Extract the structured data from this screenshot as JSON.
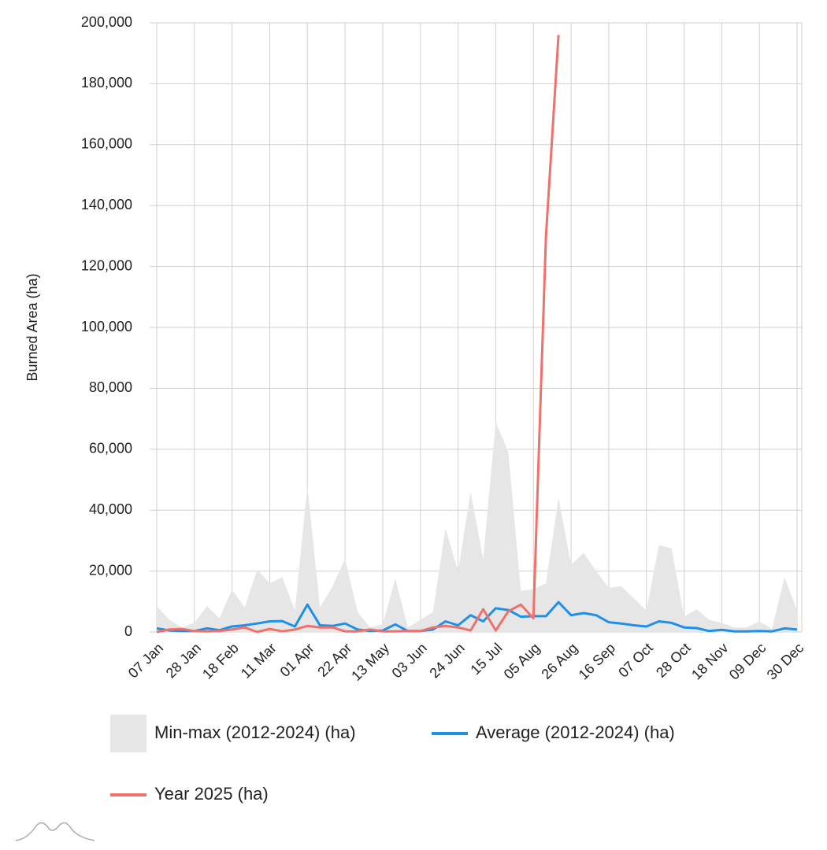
{
  "chart_data": {
    "type": "line",
    "y_label": "Burned Area (ha)",
    "categories": [
      "07 Jan",
      null,
      null,
      "28 Jan",
      null,
      null,
      "18 Feb",
      null,
      null,
      "11 Mar",
      null,
      null,
      "01 Apr",
      null,
      null,
      "22 Apr",
      null,
      null,
      "13 May",
      null,
      null,
      "03 Jun",
      null,
      null,
      "24 Jun",
      null,
      null,
      "15 Jul",
      null,
      null,
      "05 Aug",
      null,
      null,
      "26 Aug",
      null,
      null,
      "16 Sep",
      null,
      null,
      "07 Oct",
      null,
      null,
      "28 Oct",
      null,
      null,
      "18 Nov",
      null,
      null,
      "09 Dec",
      null,
      null,
      "30 Dec"
    ],
    "ylim": [
      0,
      200000
    ],
    "yticks": [
      0,
      {
        "value": 20000,
        "label": "20,000"
      },
      {
        "value": 40000,
        "label": "40,000"
      },
      {
        "value": 60000,
        "label": "60,000"
      },
      {
        "value": 80000,
        "label": "80,000"
      },
      {
        "value": 100000,
        "label": "100,000"
      },
      {
        "value": 120000,
        "label": "120,000"
      },
      {
        "value": 140000,
        "label": "140,000"
      },
      {
        "value": 160000,
        "label": "160,000"
      },
      {
        "value": 180000,
        "label": "180,000"
      },
      {
        "value": 200000,
        "label": "200,000"
      }
    ],
    "grid": true,
    "series": [
      {
        "name": "Min-max (2012-2024) (ha)",
        "kind": "band",
        "color": "#e6e6e6",
        "values": [
          8500,
          4000,
          1500,
          3000,
          8500,
          4500,
          14000,
          8000,
          20500,
          16000,
          18000,
          7000,
          48000,
          8000,
          15000,
          24000,
          6500,
          1500,
          2500,
          17500,
          1500,
          4000,
          6500,
          34000,
          20000,
          46000,
          24000,
          69000,
          59000,
          13500,
          14000,
          16000,
          44000,
          22000,
          26000,
          20000,
          14500,
          15000,
          11000,
          7000,
          28500,
          27500,
          5000,
          7500,
          4000,
          3000,
          1500,
          1500,
          3500,
          1000,
          18000,
          7000
        ],
        "min": [
          0,
          0,
          0,
          0,
          0,
          0,
          0,
          0,
          0,
          0,
          0,
          0,
          0,
          0,
          0,
          0,
          0,
          0,
          0,
          0,
          0,
          0,
          0,
          0,
          0,
          0,
          0,
          0,
          0,
          0,
          0,
          0,
          0,
          0,
          0,
          0,
          0,
          0,
          0,
          0,
          0,
          0,
          0,
          0,
          0,
          0,
          0,
          0,
          0,
          0,
          0,
          0
        ]
      },
      {
        "name": "Average (2012-2024) (ha)",
        "color": "#1e90e8",
        "values": [
          1200,
          500,
          300,
          300,
          1200,
          600,
          1800,
          2200,
          2800,
          3500,
          3600,
          1800,
          9000,
          2200,
          2000,
          2800,
          800,
          300,
          500,
          2500,
          300,
          300,
          800,
          3500,
          2200,
          5500,
          3500,
          7800,
          7200,
          5000,
          5200,
          5200,
          9800,
          5500,
          6200,
          5500,
          3200,
          2800,
          2200,
          1800,
          3500,
          3000,
          1500,
          1300,
          300,
          700,
          200,
          200,
          300,
          200,
          1200,
          800
        ]
      },
      {
        "name": "Year 2025 (ha)",
        "color": "#f0706a",
        "values": [
          0,
          800,
          1000,
          300,
          200,
          300,
          800,
          1500,
          0,
          1000,
          200,
          800,
          2000,
          1500,
          1500,
          200,
          200,
          800,
          200,
          200,
          300,
          300,
          1500,
          2000,
          1500,
          500,
          7500,
          500,
          6800,
          9000,
          4500,
          130000,
          196000,
          null,
          null,
          null,
          null,
          null,
          null,
          null,
          null,
          null,
          null,
          null,
          null,
          null,
          null,
          null,
          null,
          null,
          null,
          null
        ]
      }
    ]
  }
}
